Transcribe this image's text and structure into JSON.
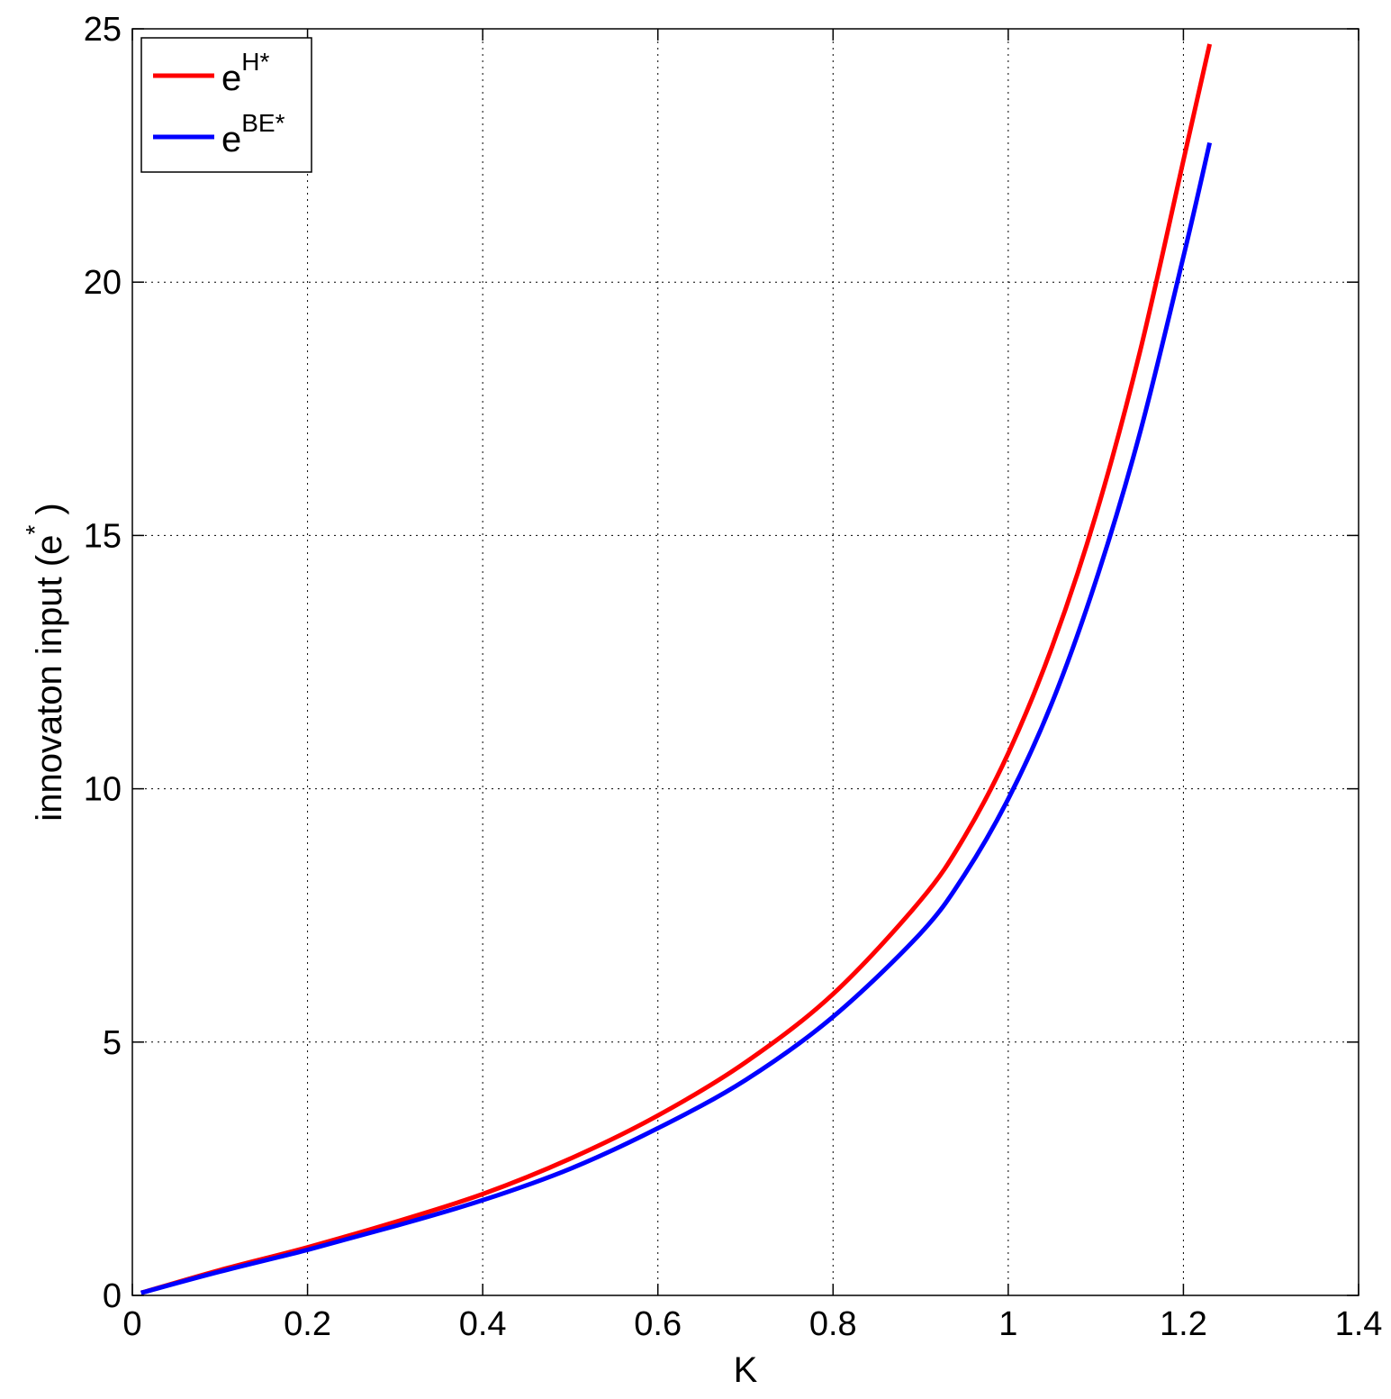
{
  "chart_data": {
    "type": "line",
    "xlabel": "K",
    "ylabel": "innovaton input (e",
    "ylabel_sup": "*",
    "ylabel_close": ")",
    "xlim": [
      0,
      1.4
    ],
    "ylim": [
      0,
      25
    ],
    "xticks": [
      "0",
      "0.2",
      "0.4",
      "0.6",
      "0.8",
      "1",
      "1.2",
      "1.4"
    ],
    "yticks": [
      "0",
      "5",
      "10",
      "15",
      "20",
      "25"
    ],
    "grid": true,
    "legend_position": "top-left",
    "series": [
      {
        "name": "e",
        "name_sup": "H*",
        "color": "#ff0000",
        "x": [
          0.01,
          0.1,
          0.2,
          0.3,
          0.4,
          0.5,
          0.6,
          0.7,
          0.8,
          0.9,
          0.95,
          1.0,
          1.05,
          1.1,
          1.15,
          1.2,
          1.23
        ],
        "y": [
          0.05,
          0.5,
          0.95,
          1.45,
          2.0,
          2.7,
          3.55,
          4.6,
          5.95,
          7.8,
          9.05,
          10.7,
          12.8,
          15.4,
          18.6,
          22.4,
          24.7
        ]
      },
      {
        "name": "e",
        "name_sup": "BE*",
        "color": "#0000ff",
        "x": [
          0.01,
          0.1,
          0.2,
          0.3,
          0.4,
          0.5,
          0.6,
          0.7,
          0.8,
          0.9,
          0.95,
          1.0,
          1.05,
          1.1,
          1.15,
          1.2,
          1.23
        ],
        "y": [
          0.05,
          0.47,
          0.9,
          1.37,
          1.88,
          2.5,
          3.3,
          4.25,
          5.5,
          7.15,
          8.3,
          9.8,
          11.7,
          14.1,
          17.0,
          20.5,
          22.75
        ]
      }
    ]
  }
}
